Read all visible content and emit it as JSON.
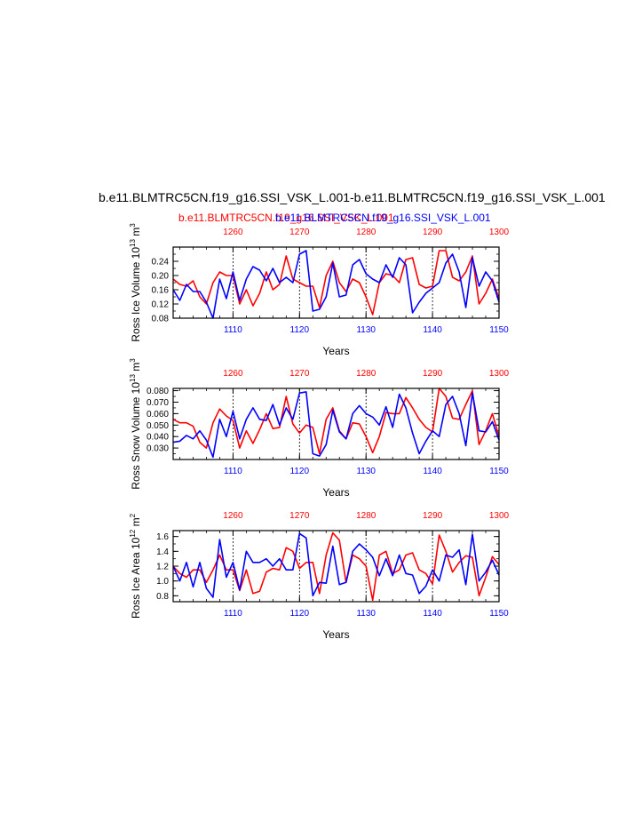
{
  "title": "b.e11.BLMTRC5CN.f19_g16.SSI_VSK_L.001-b.e11.BLMTRC5CN.f19_g16.SSI_VSK_L.001",
  "subtitle_red": "b.e11.BLMTRC5CN.f19_g16.SSI_VSK_L.001",
  "subtitle_blue": "b.e11.BLMTRC5CN.f19_g16.SSI_VSK_L.001",
  "colors": {
    "red": "#ff0000",
    "blue": "#0000ff",
    "axis": "#000000"
  },
  "chart_data": [
    {
      "type": "line",
      "ylabel_main": "Ross Ice Volume 10",
      "ylabel_exp": "13",
      "ylabel_unit": " m",
      "ylabel_unit_exp": "3",
      "xlabel": "Years",
      "xlim_bottom": [
        1101,
        1150
      ],
      "xlim_top": [
        1251,
        1300
      ],
      "ylim": [
        0.08,
        0.28
      ],
      "yticks": [
        "0.08",
        "0.12",
        "0.16",
        "0.20",
        "0.24"
      ],
      "yticks_values": [
        0.08,
        0.12,
        0.16,
        0.2,
        0.24
      ],
      "xticks_bottom": [
        "1110",
        "1120",
        "1130",
        "1140",
        "1150"
      ],
      "xticks_top": [
        "1260",
        "1270",
        "1280",
        "1290",
        "1300"
      ],
      "grid": "dashed vertical lines at labeled years",
      "series": [
        {
          "axis": "top",
          "x": [
            1251,
            1252,
            1253,
            1254,
            1255,
            1256,
            1257,
            1258,
            1259,
            1260,
            1261,
            1262,
            1263,
            1264,
            1265,
            1266,
            1267,
            1268,
            1269,
            1270,
            1271,
            1272,
            1273,
            1274,
            1275,
            1276,
            1277,
            1278,
            1279,
            1280,
            1281,
            1282,
            1283,
            1284,
            1285,
            1286,
            1287,
            1288,
            1289,
            1290,
            1291,
            1292,
            1293,
            1294,
            1295,
            1296,
            1297,
            1298,
            1299,
            1300
          ],
          "y": [
            0.19,
            0.175,
            0.17,
            0.185,
            0.14,
            0.12,
            0.18,
            0.21,
            0.2,
            0.2,
            0.12,
            0.16,
            0.115,
            0.15,
            0.21,
            0.16,
            0.175,
            0.255,
            0.19,
            0.18,
            0.17,
            0.17,
            0.11,
            0.2,
            0.24,
            0.18,
            0.155,
            0.19,
            0.18,
            0.14,
            0.09,
            0.18,
            0.205,
            0.2,
            0.18,
            0.245,
            0.25,
            0.175,
            0.165,
            0.17,
            0.27,
            0.27,
            0.195,
            0.185,
            0.21,
            0.255,
            0.12,
            0.15,
            0.19,
            0.135
          ]
        },
        {
          "axis": "bottom",
          "x": [
            1101,
            1102,
            1103,
            1104,
            1105,
            1106,
            1107,
            1108,
            1109,
            1110,
            1111,
            1112,
            1113,
            1114,
            1115,
            1116,
            1117,
            1118,
            1119,
            1120,
            1121,
            1122,
            1123,
            1124,
            1125,
            1126,
            1127,
            1128,
            1129,
            1130,
            1131,
            1132,
            1133,
            1134,
            1135,
            1136,
            1137,
            1138,
            1139,
            1140,
            1141,
            1142,
            1143,
            1144,
            1145,
            1146,
            1147,
            1148,
            1149,
            1150
          ],
          "y": [
            0.16,
            0.13,
            0.175,
            0.155,
            0.155,
            0.125,
            0.08,
            0.19,
            0.135,
            0.21,
            0.13,
            0.19,
            0.225,
            0.215,
            0.185,
            0.22,
            0.18,
            0.195,
            0.18,
            0.26,
            0.27,
            0.1,
            0.105,
            0.14,
            0.235,
            0.14,
            0.145,
            0.23,
            0.245,
            0.205,
            0.19,
            0.18,
            0.23,
            0.195,
            0.25,
            0.23,
            0.095,
            0.125,
            0.15,
            0.165,
            0.18,
            0.235,
            0.26,
            0.21,
            0.11,
            0.25,
            0.17,
            0.21,
            0.185,
            0.125
          ]
        }
      ]
    },
    {
      "type": "line",
      "ylabel_main": "Ross Snow Volume 10",
      "ylabel_exp": "13",
      "ylabel_unit": " m",
      "ylabel_unit_exp": "3",
      "xlabel": "Years",
      "xlim_bottom": [
        1101,
        1150
      ],
      "xlim_top": [
        1251,
        1300
      ],
      "ylim": [
        0.02,
        0.082
      ],
      "yticks": [
        "0.030",
        "0.040",
        "0.050",
        "0.060",
        "0.070",
        "0.080"
      ],
      "yticks_values": [
        0.03,
        0.04,
        0.05,
        0.06,
        0.07,
        0.08
      ],
      "xticks_bottom": [
        "1110",
        "1120",
        "1130",
        "1140",
        "1150"
      ],
      "xticks_top": [
        "1260",
        "1270",
        "1280",
        "1290",
        "1300"
      ],
      "grid": "dashed vertical lines at labeled years",
      "series": [
        {
          "axis": "top",
          "x": [
            1251,
            1252,
            1253,
            1254,
            1255,
            1256,
            1257,
            1258,
            1259,
            1260,
            1261,
            1262,
            1263,
            1264,
            1265,
            1266,
            1267,
            1268,
            1269,
            1270,
            1271,
            1272,
            1273,
            1274,
            1275,
            1276,
            1277,
            1278,
            1279,
            1280,
            1281,
            1282,
            1283,
            1284,
            1285,
            1286,
            1287,
            1288,
            1289,
            1290,
            1291,
            1292,
            1293,
            1294,
            1295,
            1296,
            1297,
            1298,
            1299,
            1300
          ],
          "y": [
            0.055,
            0.052,
            0.052,
            0.049,
            0.035,
            0.03,
            0.052,
            0.064,
            0.058,
            0.054,
            0.03,
            0.045,
            0.034,
            0.046,
            0.06,
            0.047,
            0.048,
            0.075,
            0.051,
            0.043,
            0.05,
            0.048,
            0.025,
            0.055,
            0.065,
            0.045,
            0.038,
            0.052,
            0.051,
            0.04,
            0.026,
            0.04,
            0.061,
            0.06,
            0.06,
            0.074,
            0.065,
            0.055,
            0.048,
            0.044,
            0.082,
            0.075,
            0.056,
            0.055,
            0.068,
            0.08,
            0.033,
            0.045,
            0.06,
            0.04
          ]
        },
        {
          "axis": "bottom",
          "x": [
            1101,
            1102,
            1103,
            1104,
            1105,
            1106,
            1107,
            1108,
            1109,
            1110,
            1111,
            1112,
            1113,
            1114,
            1115,
            1116,
            1117,
            1118,
            1119,
            1120,
            1121,
            1122,
            1123,
            1124,
            1125,
            1126,
            1127,
            1128,
            1129,
            1130,
            1131,
            1132,
            1133,
            1134,
            1135,
            1136,
            1137,
            1138,
            1139,
            1140,
            1141,
            1142,
            1143,
            1144,
            1145,
            1146,
            1147,
            1148,
            1149,
            1150
          ],
          "y": [
            0.035,
            0.036,
            0.041,
            0.038,
            0.045,
            0.037,
            0.022,
            0.055,
            0.04,
            0.062,
            0.038,
            0.055,
            0.065,
            0.055,
            0.054,
            0.068,
            0.05,
            0.065,
            0.055,
            0.078,
            0.079,
            0.025,
            0.023,
            0.033,
            0.063,
            0.044,
            0.038,
            0.06,
            0.067,
            0.06,
            0.057,
            0.05,
            0.066,
            0.048,
            0.077,
            0.065,
            0.043,
            0.025,
            0.036,
            0.045,
            0.04,
            0.068,
            0.075,
            0.06,
            0.032,
            0.078,
            0.045,
            0.044,
            0.053,
            0.037
          ]
        }
      ]
    },
    {
      "type": "line",
      "ylabel_main": "Ross Ice Area 10",
      "ylabel_exp": "12",
      "ylabel_unit": " m",
      "ylabel_unit_exp": "2",
      "xlabel": "Years",
      "xlim_bottom": [
        1101,
        1150
      ],
      "xlim_top": [
        1251,
        1300
      ],
      "ylim": [
        0.72,
        1.68
      ],
      "yticks": [
        "0.8",
        "1.0",
        "1.2",
        "1.4",
        "1.6"
      ],
      "yticks_values": [
        0.8,
        1.0,
        1.2,
        1.4,
        1.6
      ],
      "xticks_bottom": [
        "1110",
        "1120",
        "1130",
        "1140",
        "1150"
      ],
      "xticks_top": [
        "1260",
        "1270",
        "1280",
        "1290",
        "1300"
      ],
      "grid": "dashed vertical lines at labeled years",
      "series": [
        {
          "axis": "top",
          "x": [
            1251,
            1252,
            1253,
            1254,
            1255,
            1256,
            1257,
            1258,
            1259,
            1260,
            1261,
            1262,
            1263,
            1264,
            1265,
            1266,
            1267,
            1268,
            1269,
            1270,
            1271,
            1272,
            1273,
            1274,
            1275,
            1276,
            1277,
            1278,
            1279,
            1280,
            1281,
            1282,
            1283,
            1284,
            1285,
            1286,
            1287,
            1288,
            1289,
            1290,
            1291,
            1292,
            1293,
            1294,
            1295,
            1296,
            1297,
            1298,
            1299,
            1300
          ],
          "y": [
            1.2,
            1.1,
            1.05,
            1.15,
            1.15,
            0.98,
            1.15,
            1.35,
            1.15,
            1.15,
            0.87,
            1.15,
            0.83,
            0.86,
            1.12,
            1.17,
            1.15,
            1.45,
            1.4,
            1.17,
            1.25,
            1.25,
            0.83,
            1.35,
            1.65,
            1.55,
            0.98,
            1.35,
            1.3,
            1.2,
            0.74,
            1.35,
            1.4,
            1.1,
            1.15,
            1.35,
            1.38,
            1.15,
            1.1,
            0.96,
            1.62,
            1.4,
            1.12,
            1.25,
            1.34,
            1.32,
            0.8,
            1.05,
            1.33,
            1.22
          ]
        },
        {
          "axis": "bottom",
          "x": [
            1101,
            1102,
            1103,
            1104,
            1105,
            1106,
            1107,
            1108,
            1109,
            1110,
            1111,
            1112,
            1113,
            1114,
            1115,
            1116,
            1117,
            1118,
            1119,
            1120,
            1121,
            1122,
            1123,
            1124,
            1125,
            1126,
            1127,
            1128,
            1129,
            1130,
            1131,
            1132,
            1133,
            1134,
            1135,
            1136,
            1137,
            1138,
            1139,
            1140,
            1141,
            1142,
            1143,
            1144,
            1145,
            1146,
            1147,
            1148,
            1149,
            1150
          ],
          "y": [
            1.2,
            1.0,
            1.25,
            0.92,
            1.25,
            0.9,
            0.78,
            1.56,
            1.05,
            1.25,
            0.88,
            1.4,
            1.25,
            1.25,
            1.3,
            1.2,
            1.3,
            1.15,
            1.15,
            1.64,
            1.58,
            0.8,
            0.98,
            0.97,
            1.47,
            0.95,
            0.98,
            1.4,
            1.5,
            1.42,
            1.32,
            1.07,
            1.3,
            1.07,
            1.35,
            1.1,
            1.08,
            0.83,
            0.93,
            1.15,
            1.0,
            1.35,
            1.32,
            1.42,
            0.95,
            1.63,
            1.0,
            1.12,
            1.28,
            1.08
          ]
        }
      ]
    }
  ]
}
